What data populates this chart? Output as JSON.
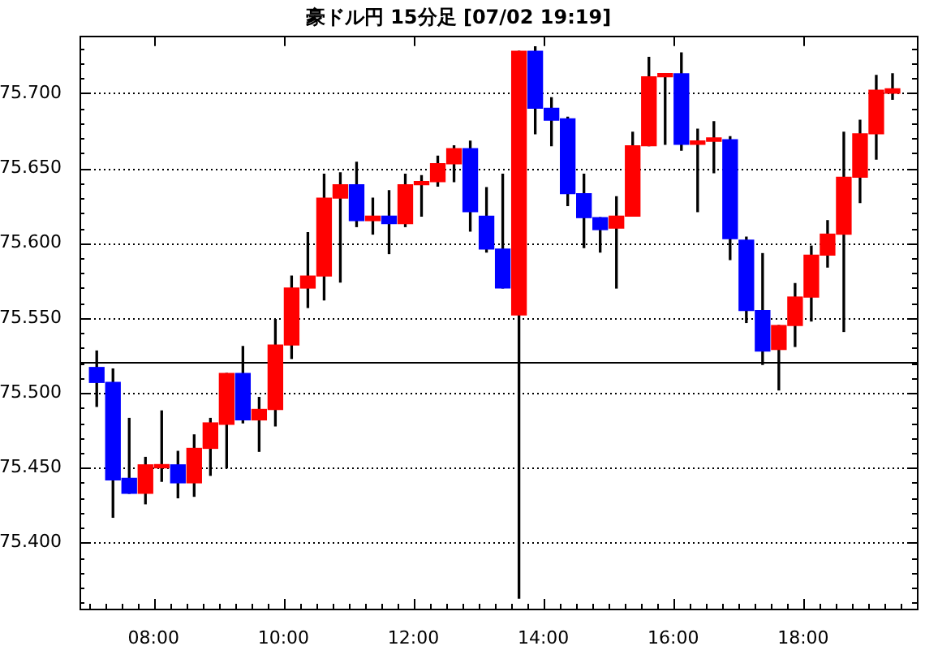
{
  "chart_data": {
    "type": "candlestick",
    "title": "豪ドル円 15分足 [07/02 19:19]",
    "x": [
      7.125,
      7.375,
      7.625,
      7.875,
      8.125,
      8.375,
      8.625,
      8.875,
      9.125,
      9.375,
      9.625,
      9.875,
      10.125,
      10.375,
      10.625,
      10.875,
      11.125,
      11.375,
      11.625,
      11.875,
      12.125,
      12.375,
      12.625,
      12.875,
      13.125,
      13.375,
      13.625,
      13.875,
      14.125,
      14.375,
      14.625,
      14.875,
      15.125,
      15.375,
      15.625,
      15.875,
      16.125,
      16.375,
      16.625,
      16.875,
      17.125,
      17.375,
      17.625,
      17.875,
      18.125,
      18.375,
      18.625,
      18.875,
      19.125,
      19.375
    ],
    "ohlc": [
      [
        75.517,
        75.528,
        75.491,
        75.507
      ],
      [
        75.507,
        75.516,
        75.417,
        75.442
      ],
      [
        75.443,
        75.483,
        75.433,
        75.433
      ],
      [
        75.433,
        75.457,
        75.426,
        75.452
      ],
      [
        75.45,
        75.488,
        75.441,
        75.452
      ],
      [
        75.452,
        75.461,
        75.43,
        75.44
      ],
      [
        75.44,
        75.472,
        75.431,
        75.463
      ],
      [
        75.463,
        75.483,
        75.445,
        75.48
      ],
      [
        75.479,
        75.513,
        75.45,
        75.513
      ],
      [
        75.513,
        75.531,
        75.48,
        75.482
      ],
      [
        75.482,
        75.497,
        75.461,
        75.489
      ],
      [
        75.489,
        75.549,
        75.478,
        75.532
      ],
      [
        75.532,
        75.578,
        75.523,
        75.57
      ],
      [
        75.57,
        75.607,
        75.557,
        75.578
      ],
      [
        75.578,
        75.646,
        75.562,
        75.63
      ],
      [
        75.63,
        75.647,
        75.574,
        75.639
      ],
      [
        75.639,
        75.654,
        75.611,
        75.615
      ],
      [
        75.615,
        75.63,
        75.606,
        75.618
      ],
      [
        75.618,
        75.635,
        75.593,
        75.613
      ],
      [
        75.613,
        75.646,
        75.611,
        75.639
      ],
      [
        75.639,
        75.645,
        75.618,
        75.641
      ],
      [
        75.641,
        75.658,
        75.638,
        75.653
      ],
      [
        75.653,
        75.665,
        75.641,
        75.663
      ],
      [
        75.663,
        75.668,
        75.608,
        75.621
      ],
      [
        75.618,
        75.637,
        75.594,
        75.596
      ],
      [
        75.596,
        75.646,
        75.57,
        75.57
      ],
      [
        75.552,
        75.728,
        75.363,
        75.728
      ],
      [
        75.728,
        75.731,
        75.673,
        75.69
      ],
      [
        75.69,
        75.697,
        75.665,
        75.682
      ],
      [
        75.683,
        75.684,
        75.625,
        75.633
      ],
      [
        75.633,
        75.646,
        75.597,
        75.617
      ],
      [
        75.617,
        75.617,
        75.594,
        75.609
      ],
      [
        75.61,
        75.631,
        75.57,
        75.618
      ],
      [
        75.618,
        75.674,
        75.618,
        75.665
      ],
      [
        75.665,
        75.724,
        75.665,
        75.711
      ],
      [
        75.711,
        75.713,
        75.666,
        75.713
      ],
      [
        75.713,
        75.727,
        75.662,
        75.666
      ],
      [
        75.666,
        75.676,
        75.621,
        75.668
      ],
      [
        75.668,
        75.681,
        75.647,
        75.67
      ],
      [
        75.669,
        75.671,
        75.589,
        75.603
      ],
      [
        75.602,
        75.604,
        75.547,
        75.555
      ],
      [
        75.555,
        75.593,
        75.519,
        75.528
      ],
      [
        75.529,
        75.545,
        75.502,
        75.545
      ],
      [
        75.545,
        75.573,
        75.531,
        75.564
      ],
      [
        75.564,
        75.598,
        75.548,
        75.592
      ],
      [
        75.592,
        75.615,
        75.584,
        75.606
      ],
      [
        75.606,
        75.674,
        75.541,
        75.644
      ],
      [
        75.644,
        75.682,
        75.627,
        75.673
      ],
      [
        75.673,
        75.712,
        75.656,
        75.702
      ],
      [
        75.7,
        75.713,
        75.696,
        75.703
      ]
    ],
    "colors": [
      "#0000ff",
      "#0000ff",
      "#0000ff",
      "#ff0000",
      "#ff0000",
      "#0000ff",
      "#ff0000",
      "#ff0000",
      "#ff0000",
      "#0000ff",
      "#ff0000",
      "#ff0000",
      "#ff0000",
      "#ff0000",
      "#ff0000",
      "#ff0000",
      "#0000ff",
      "#ff0000",
      "#0000ff",
      "#ff0000",
      "#ff0000",
      "#ff0000",
      "#ff0000",
      "#0000ff",
      "#0000ff",
      "#0000ff",
      "#ff0000",
      "#0000ff",
      "#0000ff",
      "#0000ff",
      "#0000ff",
      "#0000ff",
      "#ff0000",
      "#ff0000",
      "#ff0000",
      "#ff0000",
      "#0000ff",
      "#ff0000",
      "#ff0000",
      "#0000ff",
      "#0000ff",
      "#0000ff",
      "#ff0000",
      "#ff0000",
      "#ff0000",
      "#ff0000",
      "#ff0000",
      "#ff0000",
      "#ff0000",
      "#ff0000"
    ],
    "xlim": [
      6.86,
      19.75
    ],
    "xticks": [
      {
        "value": 7,
        "label": null
      },
      {
        "value": 7.25,
        "label": null
      },
      {
        "value": 7.5,
        "label": null
      },
      {
        "value": 7.75,
        "label": null
      },
      {
        "value": 8,
        "label": "08:00"
      },
      {
        "value": 8.25,
        "label": null
      },
      {
        "value": 8.5,
        "label": null
      },
      {
        "value": 8.75,
        "label": null
      },
      {
        "value": 9,
        "label": null
      },
      {
        "value": 9.25,
        "label": null
      },
      {
        "value": 9.5,
        "label": null
      },
      {
        "value": 9.75,
        "label": null
      },
      {
        "value": 10,
        "label": "10:00"
      },
      {
        "value": 10.25,
        "label": null
      },
      {
        "value": 10.5,
        "label": null
      },
      {
        "value": 10.75,
        "label": null
      },
      {
        "value": 11,
        "label": null
      },
      {
        "value": 11.25,
        "label": null
      },
      {
        "value": 11.5,
        "label": null
      },
      {
        "value": 11.75,
        "label": null
      },
      {
        "value": 12,
        "label": "12:00"
      },
      {
        "value": 12.25,
        "label": null
      },
      {
        "value": 12.5,
        "label": null
      },
      {
        "value": 12.75,
        "label": null
      },
      {
        "value": 13,
        "label": null
      },
      {
        "value": 13.25,
        "label": null
      },
      {
        "value": 13.5,
        "label": null
      },
      {
        "value": 13.75,
        "label": null
      },
      {
        "value": 14,
        "label": "14:00"
      },
      {
        "value": 14.25,
        "label": null
      },
      {
        "value": 14.5,
        "label": null
      },
      {
        "value": 14.75,
        "label": null
      },
      {
        "value": 15,
        "label": null
      },
      {
        "value": 15.25,
        "label": null
      },
      {
        "value": 15.5,
        "label": null
      },
      {
        "value": 15.75,
        "label": null
      },
      {
        "value": 16,
        "label": "16:00"
      },
      {
        "value": 16.25,
        "label": null
      },
      {
        "value": 16.5,
        "label": null
      },
      {
        "value": 16.75,
        "label": null
      },
      {
        "value": 17,
        "label": null
      },
      {
        "value": 17.25,
        "label": null
      },
      {
        "value": 17.5,
        "label": null
      },
      {
        "value": 17.75,
        "label": null
      },
      {
        "value": 18,
        "label": "18:00"
      },
      {
        "value": 18.25,
        "label": null
      },
      {
        "value": 18.5,
        "label": null
      },
      {
        "value": 18.75,
        "label": null
      },
      {
        "value": 19,
        "label": null
      },
      {
        "value": 19.25,
        "label": null
      },
      {
        "value": 19.5,
        "label": null
      }
    ],
    "ylim": [
      75.356,
      75.738
    ],
    "yticks": [
      {
        "value": 75.36,
        "label": null
      },
      {
        "value": 75.37,
        "label": null
      },
      {
        "value": 75.38,
        "label": null
      },
      {
        "value": 75.39,
        "label": null
      },
      {
        "value": 75.4,
        "label": "75.400"
      },
      {
        "value": 75.41,
        "label": null
      },
      {
        "value": 75.42,
        "label": null
      },
      {
        "value": 75.43,
        "label": null
      },
      {
        "value": 75.44,
        "label": null
      },
      {
        "value": 75.45,
        "label": "75.450"
      },
      {
        "value": 75.46,
        "label": null
      },
      {
        "value": 75.47,
        "label": null
      },
      {
        "value": 75.48,
        "label": null
      },
      {
        "value": 75.49,
        "label": null
      },
      {
        "value": 75.5,
        "label": "75.500"
      },
      {
        "value": 75.51,
        "label": null
      },
      {
        "value": 75.52,
        "label": null
      },
      {
        "value": 75.53,
        "label": null
      },
      {
        "value": 75.54,
        "label": null
      },
      {
        "value": 75.55,
        "label": "75.550"
      },
      {
        "value": 75.56,
        "label": null
      },
      {
        "value": 75.57,
        "label": null
      },
      {
        "value": 75.58,
        "label": null
      },
      {
        "value": 75.59,
        "label": null
      },
      {
        "value": 75.6,
        "label": "75.600"
      },
      {
        "value": 75.61,
        "label": null
      },
      {
        "value": 75.62,
        "label": null
      },
      {
        "value": 75.63,
        "label": null
      },
      {
        "value": 75.64,
        "label": null
      },
      {
        "value": 75.65,
        "label": "75.650"
      },
      {
        "value": 75.66,
        "label": null
      },
      {
        "value": 75.67,
        "label": null
      },
      {
        "value": 75.68,
        "label": null
      },
      {
        "value": 75.69,
        "label": null
      },
      {
        "value": 75.7,
        "label": "75.700"
      },
      {
        "value": 75.71,
        "label": null
      },
      {
        "value": 75.72,
        "label": null
      },
      {
        "value": 75.73,
        "label": null
      }
    ],
    "grid": "y",
    "ref_lines": [
      {
        "axis": "y",
        "value": 75.521,
        "color": "#000000"
      }
    ]
  }
}
